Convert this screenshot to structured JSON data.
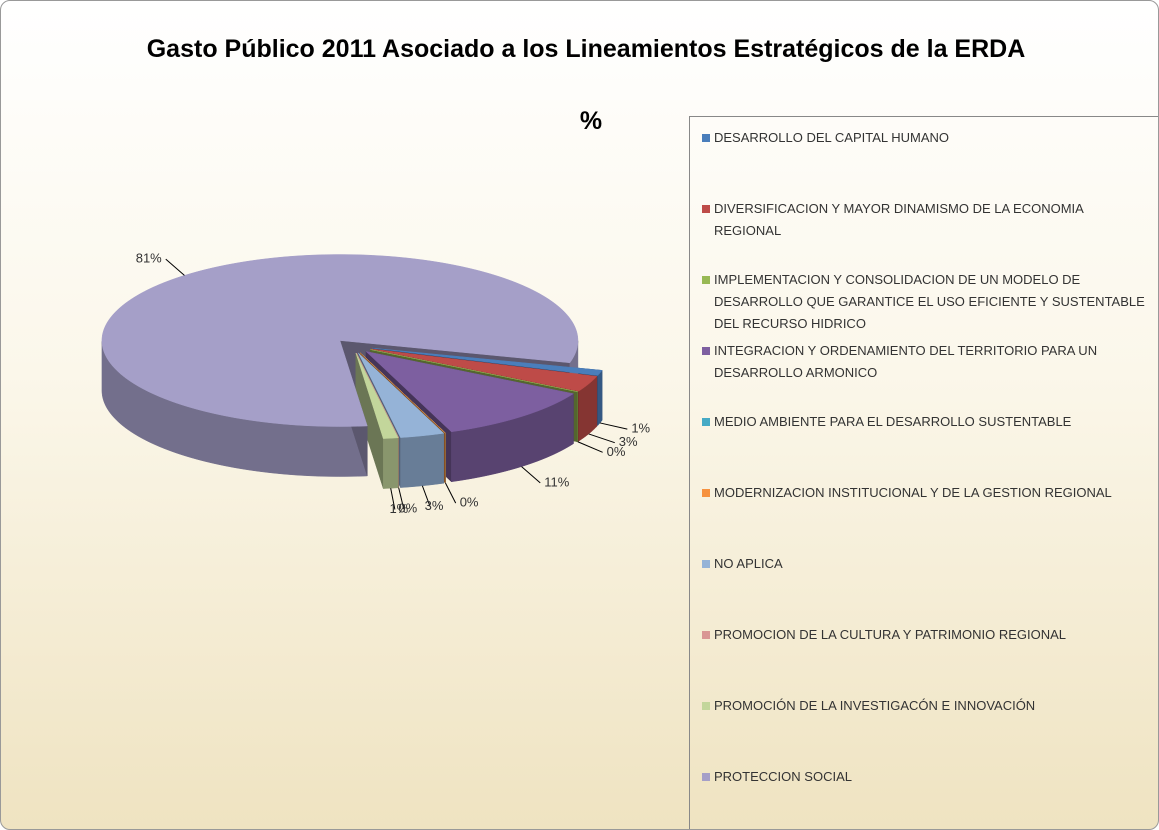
{
  "chart_data": {
    "type": "pie",
    "title": "Gasto Público 2011 Asociado a los Lineamientos Estratégicos de la ERDA",
    "subtitle": "%",
    "series": [
      {
        "name": "DESARROLLO DEL CAPITAL HUMANO",
        "color": "#4a7ebb"
      },
      {
        "name": "DIVERSIFICACION Y MAYOR DINAMISMO DE LA ECONOMIA REGIONAL",
        "color": "#be4b48"
      },
      {
        "name": "IMPLEMENTACION Y CONSOLIDACION DE UN MODELO DE DESARROLLO QUE GARANTICE EL USO EFICIENTE  Y SUSTENTABLE  DEL RECURSO HIDRICO",
        "color": "#98b954"
      },
      {
        "name": "INTEGRACION Y ORDENAMIENTO DEL TERRITORIO PARA UN DESARROLLO ARMONICO",
        "color": "#7d5fa0"
      },
      {
        "name": "MEDIO AMBIENTE PARA EL DESARROLLO SUSTENTABLE",
        "color": "#46aac5"
      },
      {
        "name": "MODERNIZACION INSTITUCIONAL Y DE LA GESTION REGIONAL",
        "color": "#f69240"
      },
      {
        "name": "NO APLICA",
        "color": "#95b3d7"
      },
      {
        "name": "PROMOCION DE LA CULTURA Y PATRIMONIO REGIONAL",
        "color": "#d99694"
      },
      {
        "name": "PROMOCIÓN DE LA INVESTIGACÓN E INNOVACIÓN",
        "color": "#c3d69b"
      },
      {
        "name": "PROTECCION SOCIAL",
        "color": "#a59fc8"
      }
    ],
    "values": [
      1,
      3,
      0,
      11,
      0,
      0,
      3,
      0,
      1,
      81
    ],
    "value_labels": [
      "1%",
      "3%",
      "0%",
      "11%",
      "0%",
      null,
      "3%",
      "0%",
      "1%",
      "81%"
    ],
    "legend": "right"
  }
}
